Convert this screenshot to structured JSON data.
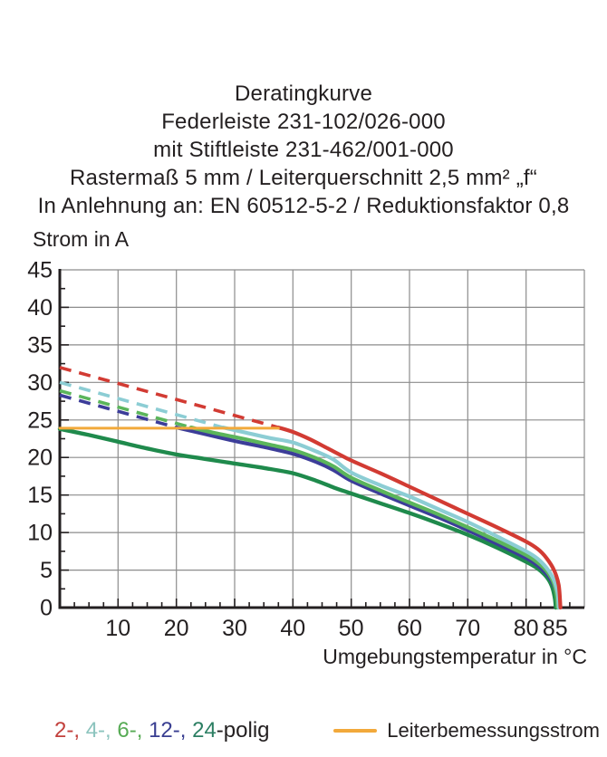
{
  "chart_data": {
    "type": "line",
    "title": "Deratingkurve",
    "title_lines": [
      "Deratingkurve",
      "Federleiste 231-102/026-000",
      "mit Stiftleiste 231-462/001-000",
      "Rastermaß 5 mm / Leiterquerschnitt 2,5 mm² „f“",
      "In Anlehnung an: EN 60512-5-2 / Reduktionsfaktor 0,8"
    ],
    "ylabel": "Strom in A",
    "xlabel": "Umgebungstemperatur in °C",
    "xlim": [
      0,
      90
    ],
    "ylim": [
      0,
      45
    ],
    "x_ticks": [
      10,
      20,
      30,
      40,
      50,
      60,
      70,
      80,
      85
    ],
    "y_ticks": [
      0,
      5,
      10,
      15,
      20,
      25,
      30,
      35,
      40,
      45
    ],
    "x_gridlines": [
      10,
      20,
      30,
      40,
      50,
      60,
      70,
      80
    ],
    "y_gridlines": [
      5,
      10,
      15,
      20,
      25,
      30,
      35,
      40
    ],
    "minor_tick_step": 2.5,
    "grid": true,
    "grid_color": "#8c8c8c",
    "axis_color": "#231f20",
    "tick_label_color": "#231f20",
    "series": [
      {
        "name": "2-polig-dashed",
        "color": "#d23b33",
        "dash": true,
        "width": 3.6,
        "points": [
          [
            0,
            32
          ],
          [
            37.5,
            24
          ]
        ]
      },
      {
        "name": "4-polig-dashed",
        "color": "#8ccdd4",
        "dash": true,
        "width": 3.6,
        "points": [
          [
            0,
            30
          ],
          [
            28,
            24
          ]
        ]
      },
      {
        "name": "6-polig-dashed",
        "color": "#5bb55b",
        "dash": true,
        "width": 3.6,
        "points": [
          [
            0,
            28.9
          ],
          [
            22.5,
            24
          ]
        ]
      },
      {
        "name": "12-polig-dashed",
        "color": "#3c3d99",
        "dash": true,
        "width": 3.6,
        "points": [
          [
            0,
            28.3
          ],
          [
            20,
            24
          ]
        ]
      },
      {
        "name": "24-polig",
        "color": "#1f8a4c",
        "dash": false,
        "width": 4.4,
        "points": [
          [
            0,
            23.8
          ],
          [
            5,
            23
          ],
          [
            10,
            22.1
          ],
          [
            15,
            21.2
          ],
          [
            20,
            20.4
          ],
          [
            25,
            19.8
          ],
          [
            30,
            19.2
          ],
          [
            35,
            18.6
          ],
          [
            40,
            17.9
          ],
          [
            44,
            16.9
          ],
          [
            47,
            16
          ],
          [
            50,
            15.2
          ],
          [
            55,
            13.9
          ],
          [
            60,
            12.6
          ],
          [
            65,
            11.2
          ],
          [
            70,
            9.7
          ],
          [
            75,
            8
          ],
          [
            80,
            6.1
          ],
          [
            82,
            5.2
          ],
          [
            83.5,
            4.1
          ],
          [
            84.4,
            2.9
          ],
          [
            84.9,
            1.4
          ],
          [
            85.1,
            0
          ]
        ]
      },
      {
        "name": "12-polig",
        "color": "#3c3d99",
        "dash": false,
        "width": 4.2,
        "points": [
          [
            20,
            24
          ],
          [
            25,
            23.1
          ],
          [
            30,
            22.2
          ],
          [
            35,
            21.4
          ],
          [
            40,
            20.5
          ],
          [
            44,
            19.4
          ],
          [
            47,
            18.3
          ],
          [
            50,
            16.9
          ],
          [
            55,
            15.2
          ],
          [
            60,
            13.6
          ],
          [
            65,
            12
          ],
          [
            70,
            10.3
          ],
          [
            75,
            8.5
          ],
          [
            80,
            6.6
          ],
          [
            82,
            5.6
          ],
          [
            83.5,
            4.5
          ],
          [
            84.6,
            3.2
          ],
          [
            85.3,
            1.6
          ],
          [
            85.5,
            0
          ]
        ]
      },
      {
        "name": "6-polig",
        "color": "#5bb55b",
        "dash": false,
        "width": 4.2,
        "points": [
          [
            22.5,
            24
          ],
          [
            27,
            23.2
          ],
          [
            32,
            22.4
          ],
          [
            36,
            21.7
          ],
          [
            40,
            21
          ],
          [
            44,
            19.9
          ],
          [
            47,
            18.8
          ],
          [
            50,
            17.3
          ],
          [
            55,
            15.6
          ],
          [
            60,
            14
          ],
          [
            65,
            12.4
          ],
          [
            70,
            10.7
          ],
          [
            75,
            8.9
          ],
          [
            80,
            7
          ],
          [
            82,
            6
          ],
          [
            83.5,
            4.9
          ],
          [
            84.6,
            3.5
          ],
          [
            85.2,
            1.8
          ],
          [
            85.4,
            0
          ]
        ]
      },
      {
        "name": "4-polig",
        "color": "#8ccdd4",
        "dash": false,
        "width": 4.2,
        "points": [
          [
            28,
            24
          ],
          [
            32,
            23.3
          ],
          [
            36,
            22.6
          ],
          [
            40,
            22
          ],
          [
            44,
            20.8
          ],
          [
            47,
            19.7
          ],
          [
            50,
            18
          ],
          [
            55,
            16.3
          ],
          [
            60,
            14.8
          ],
          [
            65,
            13.1
          ],
          [
            70,
            11.4
          ],
          [
            75,
            9.5
          ],
          [
            80,
            7.5
          ],
          [
            82,
            6.5
          ],
          [
            83.5,
            5.3
          ],
          [
            84.7,
            3.8
          ],
          [
            85.4,
            2
          ],
          [
            85.6,
            0
          ]
        ]
      },
      {
        "name": "2-polig",
        "color": "#d23b33",
        "dash": false,
        "width": 4.2,
        "points": [
          [
            37.5,
            24
          ],
          [
            40,
            23.4
          ],
          [
            43,
            22.4
          ],
          [
            46,
            21.2
          ],
          [
            50,
            19.6
          ],
          [
            55,
            17.9
          ],
          [
            60,
            16.1
          ],
          [
            65,
            14.3
          ],
          [
            70,
            12.5
          ],
          [
            75,
            10.7
          ],
          [
            80,
            8.8
          ],
          [
            82,
            7.8
          ],
          [
            83.5,
            6.6
          ],
          [
            84.8,
            5
          ],
          [
            85.6,
            3
          ],
          [
            85.9,
            0
          ]
        ]
      },
      {
        "name": "Leiterbemessungsstrom",
        "color": "#f2a93b",
        "dash": false,
        "width": 3,
        "points": [
          [
            0,
            23.9
          ],
          [
            37.5,
            23.9
          ]
        ]
      }
    ],
    "legend": {
      "poles": [
        {
          "label": "2-, ",
          "color": "#c2403c"
        },
        {
          "label": "4-, ",
          "color": "#8cc4be"
        },
        {
          "label": "6-, ",
          "color": "#57ab55"
        },
        {
          "label": "12-, ",
          "color": "#393e91"
        },
        {
          "label": "24",
          "color": "#2c7f63"
        },
        {
          "label": "-polig",
          "color": "#231f20"
        }
      ],
      "rated": {
        "label": "Leiterbemessungsstrom",
        "color": "#f2a93b"
      }
    }
  }
}
